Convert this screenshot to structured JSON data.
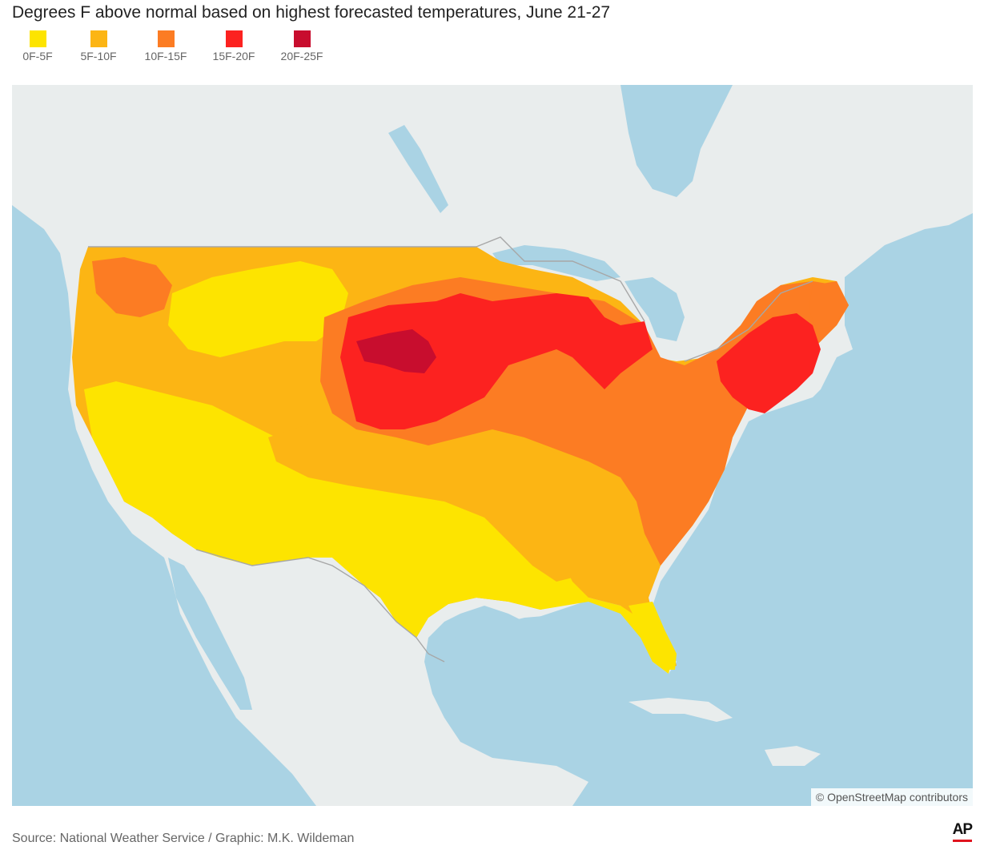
{
  "title": "Degrees F above normal based on highest forecasted temperatures, June 21-27",
  "legend": [
    {
      "label": "0F-5F",
      "color": "#fde400"
    },
    {
      "label": "5F-10F",
      "color": "#fcb514"
    },
    {
      "label": "10F-15F",
      "color": "#fc7c23"
    },
    {
      "label": "15F-20F",
      "color": "#fc2220"
    },
    {
      "label": "20F-25F",
      "color": "#c80d2e"
    }
  ],
  "map": {
    "attribution": "© OpenStreetMap contributors",
    "water_color": "#aad3e4",
    "land_color": "#e9eded"
  },
  "source": "Source: National Weather Service / Graphic: M.K. Wildeman",
  "logo": "AP"
}
